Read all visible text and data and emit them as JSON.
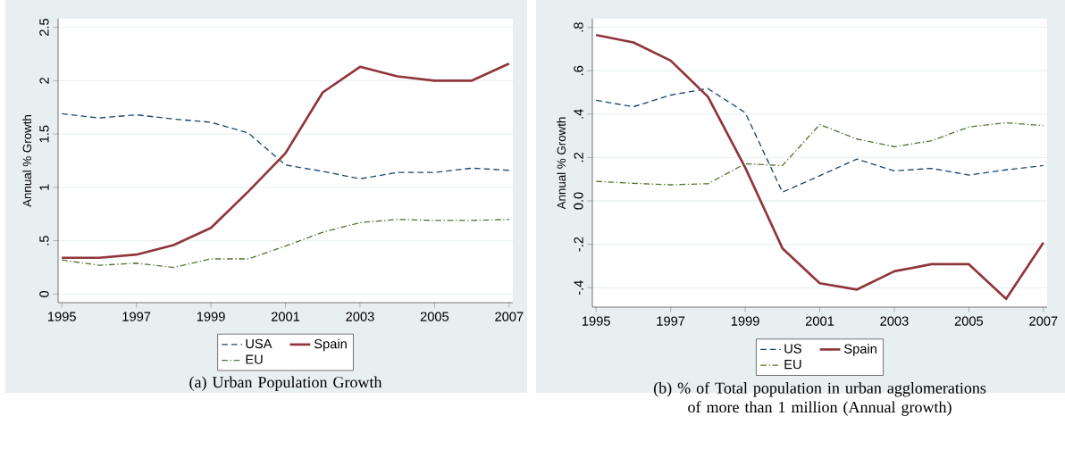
{
  "chart_data": [
    {
      "type": "line",
      "title": "(a) Urban Population Growth",
      "ylabel": "Annual % Growth",
      "x": [
        1995,
        1996,
        1997,
        1998,
        1999,
        2000,
        2001,
        2002,
        2003,
        2004,
        2005,
        2006,
        2007
      ],
      "series": [
        {
          "name": "USA",
          "color": "#1a476f",
          "line_style": "dashed",
          "values": [
            1.69,
            1.65,
            1.68,
            1.64,
            1.61,
            1.51,
            1.21,
            1.15,
            1.08,
            1.14,
            1.14,
            1.18,
            1.16
          ]
        },
        {
          "name": "Spain",
          "color": "#90353b",
          "line_style": "solid",
          "values": [
            0.34,
            0.34,
            0.37,
            0.46,
            0.62,
            0.96,
            1.32,
            1.89,
            2.13,
            2.04,
            2.0,
            2.0,
            2.16
          ]
        },
        {
          "name": "EU",
          "color": "#55752f",
          "line_style": "dashdot",
          "values": [
            0.32,
            0.27,
            0.29,
            0.25,
            0.33,
            0.33,
            0.45,
            0.58,
            0.67,
            0.7,
            0.69,
            0.69,
            0.7
          ]
        }
      ],
      "xlim": [
        1994.9,
        2007.1
      ],
      "xticks": [
        1995,
        1997,
        1999,
        2001,
        2003,
        2005,
        2007
      ],
      "ylim": [
        -0.08,
        2.58
      ],
      "yticks": [
        0,
        {
          "value": 0.5,
          "label": ".5"
        },
        1,
        1.5,
        2,
        2.5
      ],
      "grid": "y",
      "legend": "bottom"
    },
    {
      "type": "line",
      "title": "(b) % of Total population in urban agglomerations of more than 1 million (Annual growth)",
      "ylabel": "Annual % Growth",
      "x": [
        1995,
        1996,
        1997,
        1998,
        1999,
        2000,
        2001,
        2002,
        2003,
        2004,
        2005,
        2006,
        2007
      ],
      "series": [
        {
          "name": "US",
          "color": "#1a476f",
          "line_style": "dashed",
          "values": [
            0.464,
            0.434,
            0.488,
            0.518,
            0.407,
            0.04,
            0.116,
            0.193,
            0.138,
            0.15,
            0.119,
            0.143,
            0.163
          ]
        },
        {
          "name": "Spain",
          "color": "#90353b",
          "line_style": "solid",
          "values": [
            0.765,
            0.731,
            0.647,
            0.48,
            0.154,
            -0.219,
            -0.38,
            -0.409,
            -0.325,
            -0.292,
            -0.292,
            -0.452,
            -0.193
          ]
        },
        {
          "name": "EU",
          "color": "#55752f",
          "line_style": "dashdot",
          "values": [
            0.09,
            0.081,
            0.074,
            0.079,
            0.171,
            0.163,
            0.352,
            0.285,
            0.25,
            0.277,
            0.341,
            0.36,
            0.347
          ]
        }
      ],
      "xlim": [
        1994.9,
        2007.1
      ],
      "xticks": [
        1995,
        1997,
        1999,
        2001,
        2003,
        2005,
        2007
      ],
      "ylim": [
        -0.49,
        0.84
      ],
      "yticks": [
        {
          "value": -0.4,
          "label": "-.4"
        },
        {
          "value": -0.2,
          "label": "-.2"
        },
        {
          "value": 0,
          "label": "0.0"
        },
        {
          "value": 0.2,
          "label": ".2"
        },
        {
          "value": 0.4,
          "label": ".4"
        },
        {
          "value": 0.6,
          "label": ".6"
        },
        {
          "value": 0.8,
          "label": ".8"
        }
      ],
      "grid": "y",
      "legend": "bottom"
    }
  ]
}
